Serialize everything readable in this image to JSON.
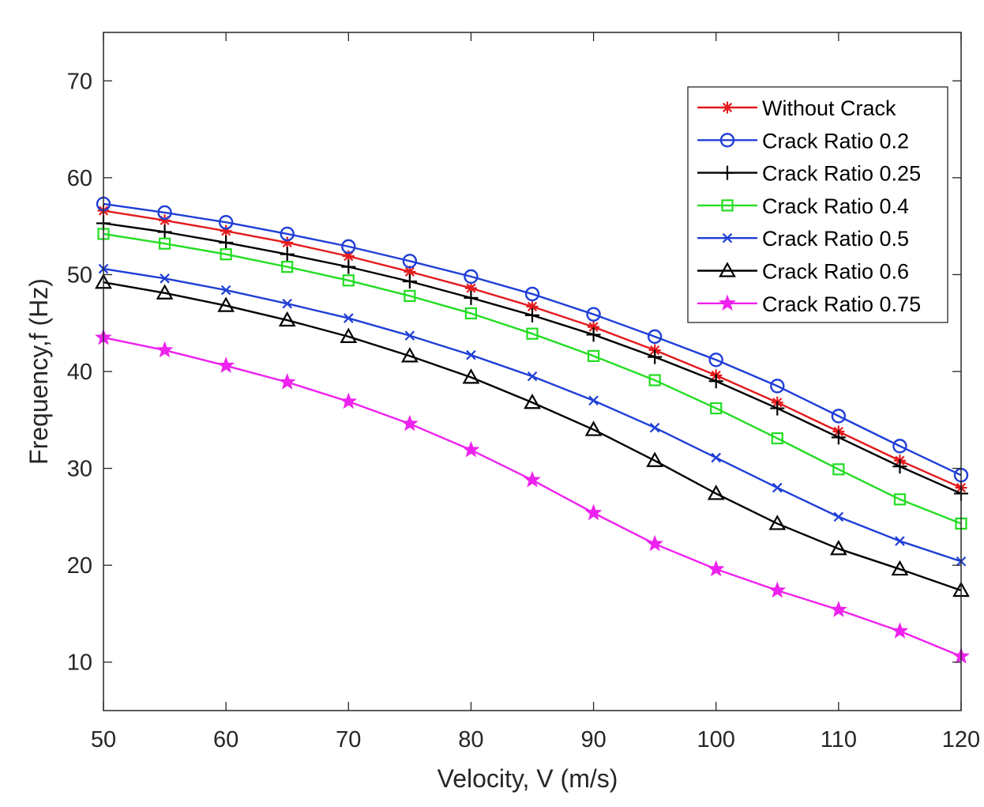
{
  "chart_data": {
    "type": "line",
    "title": "",
    "xlabel": "Velocity, V (m/s)",
    "ylabel": "Frequency,f (Hz)",
    "xlim": [
      50,
      120
    ],
    "ylim": [
      5,
      75
    ],
    "xticks": [
      50,
      60,
      70,
      80,
      90,
      100,
      110,
      120
    ],
    "yticks": [
      10,
      20,
      30,
      40,
      50,
      60,
      70
    ],
    "grid": false,
    "legend_position": "top-right",
    "x": [
      50,
      55,
      60,
      65,
      70,
      75,
      80,
      85,
      90,
      95,
      100,
      105,
      110,
      115,
      120
    ],
    "series": [
      {
        "name": "Without Crack",
        "color": "#e41a1c",
        "marker": "asterisk",
        "values": [
          56.6,
          55.6,
          54.5,
          53.3,
          51.9,
          50.3,
          48.6,
          46.7,
          44.6,
          42.2,
          39.6,
          36.8,
          33.8,
          30.8,
          28.0
        ]
      },
      {
        "name": "Crack Ratio 0.2",
        "color": "#1f3fd6",
        "marker": "circle",
        "values": [
          57.3,
          56.4,
          55.4,
          54.2,
          52.9,
          51.4,
          49.8,
          48.0,
          45.9,
          43.6,
          41.2,
          38.5,
          35.4,
          32.3,
          29.3
        ]
      },
      {
        "name": "Crack Ratio 0.25",
        "color": "#000000",
        "marker": "plus",
        "values": [
          55.3,
          54.4,
          53.3,
          52.1,
          50.8,
          49.3,
          47.6,
          45.8,
          43.8,
          41.5,
          39.0,
          36.2,
          33.2,
          30.2,
          27.4
        ]
      },
      {
        "name": "Crack Ratio 0.4",
        "color": "#22dd22",
        "marker": "square",
        "values": [
          54.2,
          53.2,
          52.1,
          50.8,
          49.4,
          47.8,
          46.0,
          43.9,
          41.6,
          39.1,
          36.2,
          33.1,
          29.9,
          26.8,
          24.3
        ]
      },
      {
        "name": "Crack Ratio 0.5",
        "color": "#1f3fd6",
        "marker": "x",
        "values": [
          50.6,
          49.6,
          48.4,
          47.0,
          45.5,
          43.7,
          41.7,
          39.5,
          37.0,
          34.2,
          31.1,
          28.0,
          25.0,
          22.5,
          20.4
        ]
      },
      {
        "name": "Crack Ratio 0.6",
        "color": "#000000",
        "marker": "triangle",
        "values": [
          49.2,
          48.1,
          46.8,
          45.3,
          43.6,
          41.6,
          39.4,
          36.8,
          34.0,
          30.8,
          27.4,
          24.3,
          21.7,
          19.6,
          17.4
        ]
      },
      {
        "name": "Crack Ratio 0.75",
        "color": "#ee22ee",
        "marker": "star",
        "values": [
          43.5,
          42.2,
          40.6,
          38.9,
          36.9,
          34.6,
          31.9,
          28.8,
          25.4,
          22.2,
          19.6,
          17.4,
          15.4,
          13.2,
          10.6
        ]
      }
    ]
  }
}
